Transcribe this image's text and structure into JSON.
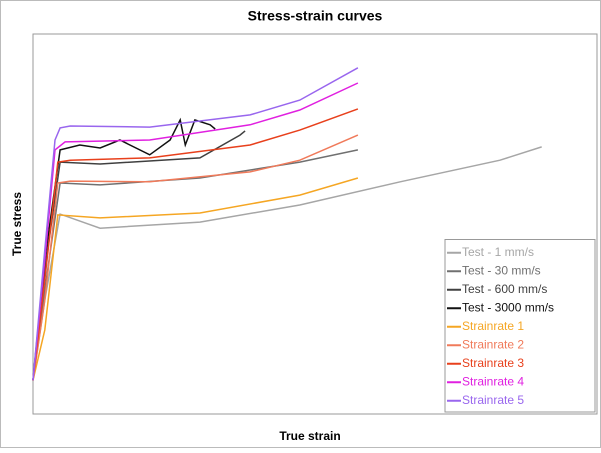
{
  "chart_data": {
    "type": "line",
    "title": "Stress-strain curves",
    "x_label": "True strain",
    "y_label": "True stress",
    "xlim": [
      0,
      100
    ],
    "ylim": [
      0,
      100
    ],
    "legend": "lower right",
    "series": [
      {
        "name": "Test - 1 mm/s",
        "color": "#a6a6a6",
        "x": [
          0,
          2.1,
          4.8,
          11.9,
          29.6,
          47.3,
          65.1,
          82.8,
          90.2
        ],
        "values": [
          8.9,
          30,
          52.6,
          48.9,
          50.5,
          55,
          61.1,
          66.8,
          70.3
        ]
      },
      {
        "name": "Test - 30 mm/s",
        "color": "#707070",
        "x": [
          0,
          2.1,
          4.8,
          11.9,
          29.6,
          47.3,
          57.6
        ],
        "values": [
          8.9,
          32.6,
          60.8,
          60.3,
          62.1,
          66.3,
          69.5
        ]
      },
      {
        "name": "Test - 600 mm/s",
        "color": "#404040",
        "x": [
          0,
          2.1,
          4.8,
          11.9,
          29.6,
          36.7,
          37.6
        ],
        "values": [
          8.9,
          37.9,
          66.3,
          65.8,
          67.4,
          73.4,
          74.5
        ]
      },
      {
        "name": "Test - 3000 mm/s",
        "color": "#111111",
        "x": [
          0,
          2.1,
          4.8,
          8.3,
          11.9,
          15.4,
          20.7,
          24.3,
          26.1,
          27,
          28.7,
          31.4,
          32.3
        ],
        "values": [
          8.9,
          40.5,
          69.5,
          70.8,
          70,
          72.1,
          68.2,
          72.1,
          77.4,
          70.8,
          77.4,
          76.1,
          75
        ]
      },
      {
        "name": "Strainrate 1",
        "color": "#f5a623",
        "x": [
          0,
          2.1,
          4.4,
          11.9,
          29.6,
          47.3,
          57.6
        ],
        "values": [
          8.9,
          22.1,
          52.4,
          51.6,
          52.9,
          57.6,
          62.1
        ]
      },
      {
        "name": "Strainrate 2",
        "color": "#f07a5a",
        "x": [
          0,
          2.1,
          4.4,
          6.6,
          20.7,
          38.5,
          47.3,
          57.6
        ],
        "values": [
          8.9,
          30,
          60.8,
          61.3,
          61.1,
          63.7,
          66.8,
          73.4
        ]
      },
      {
        "name": "Strainrate 3",
        "color": "#e8401c",
        "x": [
          0,
          2.1,
          4.4,
          6.6,
          20.7,
          38.5,
          47.3,
          57.6
        ],
        "values": [
          8.9,
          35.3,
          66.3,
          66.8,
          67.4,
          70.8,
          74.7,
          80.3
        ]
      },
      {
        "name": "Strainrate 4",
        "color": "#e020e0",
        "x": [
          0,
          2.1,
          3.9,
          5.7,
          20.7,
          38.5,
          47.3,
          57.6
        ],
        "values": [
          8.9,
          40.5,
          69.5,
          71.6,
          72.1,
          76.1,
          80,
          87.1
        ]
      },
      {
        "name": "Strainrate 5",
        "color": "#9966ee",
        "x": [
          0,
          2.1,
          3.9,
          4.8,
          6.6,
          20.7,
          38.5,
          47.3,
          57.6
        ],
        "values": [
          8.9,
          43.2,
          72.1,
          75.3,
          75.8,
          75.5,
          78.7,
          82.6,
          91.1
        ]
      }
    ]
  }
}
